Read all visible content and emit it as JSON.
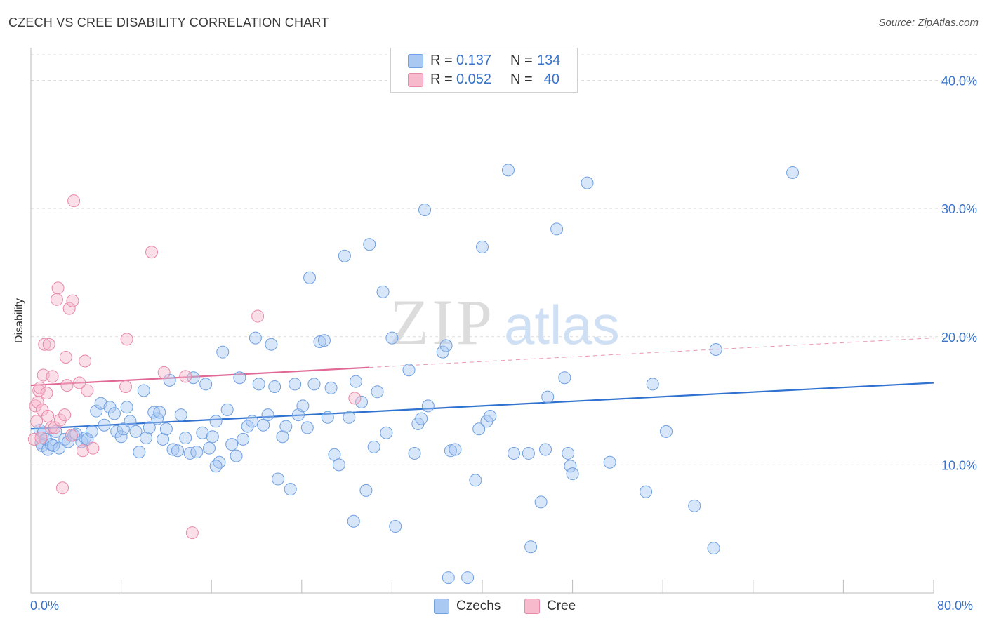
{
  "title": "CZECH VS CREE DISABILITY CORRELATION CHART",
  "source": "Source: ZipAtlas.com",
  "watermark": {
    "zip": "ZIP",
    "atlas": "atlas"
  },
  "legend": {
    "rows": [
      {
        "r_label": "R =",
        "r_value": "0.137",
        "n_label": "N =",
        "n_value": "134",
        "color": "#a9c8f2"
      },
      {
        "r_label": "R =",
        "r_value": "0.052",
        "n_label": "N =",
        "n_value": "40",
        "color": "#f7b9cc"
      }
    ]
  },
  "bottom_legend": [
    {
      "label": "Czechs",
      "color": "#a9c8f2"
    },
    {
      "label": "Cree",
      "color": "#f7b9cc"
    }
  ],
  "colors": {
    "czech_fill": "rgba(169,200,242,0.45)",
    "czech_stroke": "#6fa0e0",
    "czech_line": "#2f72d0",
    "cree_fill": "rgba(247,185,204,0.45)",
    "cree_stroke": "#e889a8",
    "cree_line": "#e06a95",
    "axis_text": "#3a73c8",
    "grid": "#dddddd"
  },
  "chart_data": {
    "type": "scatter",
    "title": "CZECH VS CREE DISABILITY CORRELATION CHART",
    "xlabel": "",
    "ylabel": "Disability",
    "xlim": [
      0,
      80
    ],
    "ylim": [
      0,
      42
    ],
    "x_tick_labels": [
      "0.0%",
      "80.0%"
    ],
    "y_ticks": [
      10,
      20,
      30,
      40
    ],
    "y_tick_labels": [
      "10.0%",
      "20.0%",
      "30.0%",
      "40.0%"
    ],
    "grid": true,
    "series": [
      {
        "name": "Czechs",
        "points": [
          [
            0.8,
            12.7
          ],
          [
            0.9,
            11.7
          ],
          [
            1.0,
            11.5
          ],
          [
            1.1,
            12.5
          ],
          [
            1.3,
            12.0
          ],
          [
            1.5,
            11.2
          ],
          [
            1.8,
            11.6
          ],
          [
            2.0,
            11.5
          ],
          [
            2.2,
            12.6
          ],
          [
            2.5,
            11.3
          ],
          [
            3.0,
            12.0
          ],
          [
            3.3,
            11.8
          ],
          [
            3.8,
            12.3
          ],
          [
            4.0,
            12.4
          ],
          [
            4.5,
            11.8
          ],
          [
            4.8,
            12.1
          ],
          [
            5.0,
            12.0
          ],
          [
            5.4,
            12.6
          ],
          [
            5.8,
            14.2
          ],
          [
            6.2,
            14.8
          ],
          [
            6.5,
            13.1
          ],
          [
            7.0,
            14.5
          ],
          [
            7.4,
            14.0
          ],
          [
            7.6,
            12.6
          ],
          [
            8.0,
            12.2
          ],
          [
            8.2,
            12.8
          ],
          [
            8.5,
            14.5
          ],
          [
            8.8,
            13.4
          ],
          [
            9.3,
            12.6
          ],
          [
            9.6,
            11.0
          ],
          [
            10.0,
            15.8
          ],
          [
            10.2,
            12.1
          ],
          [
            10.5,
            12.9
          ],
          [
            10.9,
            14.1
          ],
          [
            11.2,
            13.6
          ],
          [
            11.7,
            12.0
          ],
          [
            12.0,
            12.8
          ],
          [
            12.3,
            16.6
          ],
          [
            12.6,
            11.2
          ],
          [
            13.0,
            11.1
          ],
          [
            13.3,
            13.9
          ],
          [
            13.7,
            12.1
          ],
          [
            14.1,
            10.9
          ],
          [
            14.4,
            16.8
          ],
          [
            14.7,
            11.0
          ],
          [
            15.2,
            12.5
          ],
          [
            15.5,
            16.3
          ],
          [
            15.8,
            11.3
          ],
          [
            16.1,
            12.2
          ],
          [
            16.4,
            13.4
          ],
          [
            16.7,
            10.2
          ],
          [
            17.0,
            18.8
          ],
          [
            17.4,
            14.3
          ],
          [
            17.8,
            11.6
          ],
          [
            18.2,
            10.7
          ],
          [
            18.5,
            16.8
          ],
          [
            18.8,
            12.0
          ],
          [
            19.2,
            13.0
          ],
          [
            19.6,
            13.4
          ],
          [
            19.9,
            19.9
          ],
          [
            20.2,
            16.3
          ],
          [
            20.6,
            13.1
          ],
          [
            21.0,
            13.9
          ],
          [
            21.3,
            19.4
          ],
          [
            21.6,
            16.1
          ],
          [
            21.9,
            8.9
          ],
          [
            22.3,
            12.2
          ],
          [
            22.6,
            13.0
          ],
          [
            23.0,
            8.1
          ],
          [
            23.4,
            16.3
          ],
          [
            23.7,
            13.9
          ],
          [
            24.1,
            14.6
          ],
          [
            24.5,
            12.9
          ],
          [
            24.7,
            24.6
          ],
          [
            25.1,
            16.3
          ],
          [
            25.6,
            19.6
          ],
          [
            26.0,
            19.7
          ],
          [
            26.3,
            13.7
          ],
          [
            26.6,
            16.0
          ],
          [
            26.9,
            10.8
          ],
          [
            27.3,
            10.0
          ],
          [
            27.8,
            26.3
          ],
          [
            28.2,
            13.7
          ],
          [
            28.6,
            5.6
          ],
          [
            28.8,
            16.5
          ],
          [
            29.3,
            14.9
          ],
          [
            29.7,
            8.0
          ],
          [
            30.0,
            27.2
          ],
          [
            30.4,
            11.4
          ],
          [
            30.7,
            15.7
          ],
          [
            31.2,
            23.5
          ],
          [
            31.5,
            12.5
          ],
          [
            32.0,
            19.9
          ],
          [
            32.3,
            5.2
          ],
          [
            33.5,
            17.4
          ],
          [
            34.0,
            10.9
          ],
          [
            34.3,
            13.2
          ],
          [
            34.6,
            13.6
          ],
          [
            34.9,
            29.9
          ],
          [
            35.2,
            14.6
          ],
          [
            36.5,
            18.8
          ],
          [
            36.8,
            19.3
          ],
          [
            37.0,
            1.2
          ],
          [
            37.2,
            11.1
          ],
          [
            37.6,
            11.2
          ],
          [
            38.7,
            1.2
          ],
          [
            39.4,
            8.8
          ],
          [
            39.7,
            12.8
          ],
          [
            40.0,
            27.0
          ],
          [
            40.4,
            13.4
          ],
          [
            40.7,
            13.8
          ],
          [
            42.3,
            33.0
          ],
          [
            42.8,
            10.9
          ],
          [
            44.1,
            10.9
          ],
          [
            44.3,
            3.6
          ],
          [
            45.2,
            7.1
          ],
          [
            45.6,
            11.2
          ],
          [
            45.8,
            15.3
          ],
          [
            46.6,
            28.4
          ],
          [
            47.3,
            16.8
          ],
          [
            47.6,
            10.9
          ],
          [
            47.8,
            9.9
          ],
          [
            48.0,
            9.3
          ],
          [
            49.3,
            32.0
          ],
          [
            51.3,
            10.2
          ],
          [
            54.5,
            7.9
          ],
          [
            55.1,
            16.3
          ],
          [
            56.3,
            12.6
          ],
          [
            58.8,
            6.8
          ],
          [
            60.5,
            3.5
          ],
          [
            60.7,
            19.0
          ],
          [
            67.5,
            32.8
          ],
          [
            11.4,
            14.1
          ],
          [
            16.4,
            9.9
          ]
        ],
        "trend": {
          "x": [
            0,
            80
          ],
          "y": [
            12.8,
            16.4
          ]
        }
      },
      {
        "name": "Cree",
        "points": [
          [
            0.3,
            12.0
          ],
          [
            0.4,
            14.6
          ],
          [
            0.5,
            13.4
          ],
          [
            0.6,
            14.9
          ],
          [
            0.7,
            15.8
          ],
          [
            0.8,
            16.0
          ],
          [
            0.9,
            12.1
          ],
          [
            1.0,
            14.3
          ],
          [
            1.1,
            17.0
          ],
          [
            1.2,
            19.4
          ],
          [
            1.4,
            15.6
          ],
          [
            1.5,
            13.8
          ],
          [
            1.6,
            19.4
          ],
          [
            1.8,
            12.9
          ],
          [
            1.9,
            16.9
          ],
          [
            2.1,
            12.9
          ],
          [
            2.3,
            22.9
          ],
          [
            2.4,
            23.8
          ],
          [
            2.6,
            13.5
          ],
          [
            2.8,
            8.2
          ],
          [
            3.0,
            13.9
          ],
          [
            3.1,
            18.4
          ],
          [
            3.2,
            16.2
          ],
          [
            3.4,
            22.2
          ],
          [
            3.6,
            12.3
          ],
          [
            3.7,
            22.8
          ],
          [
            3.8,
            30.6
          ],
          [
            4.3,
            16.4
          ],
          [
            4.6,
            11.1
          ],
          [
            4.8,
            18.1
          ],
          [
            5.0,
            15.8
          ],
          [
            5.5,
            11.3
          ],
          [
            8.4,
            16.1
          ],
          [
            8.5,
            19.8
          ],
          [
            10.7,
            26.6
          ],
          [
            11.8,
            17.2
          ],
          [
            13.7,
            16.9
          ],
          [
            14.3,
            4.7
          ],
          [
            20.1,
            21.6
          ],
          [
            28.7,
            15.2
          ]
        ],
        "trend": {
          "x": [
            0,
            30
          ],
          "y": [
            16.2,
            17.6
          ],
          "dashed_to": [
            80,
            19.9
          ]
        }
      }
    ]
  }
}
